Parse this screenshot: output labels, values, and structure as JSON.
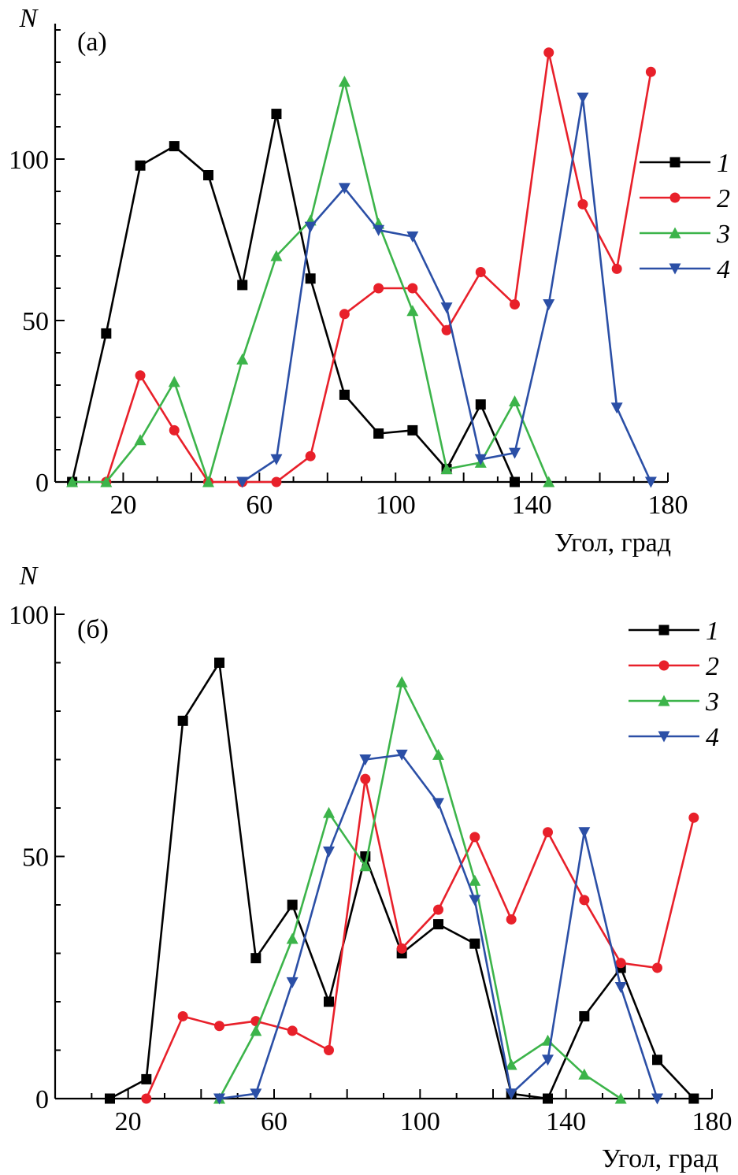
{
  "chart_data": [
    {
      "type": "line",
      "panel_label": "(а)",
      "xlabel": "Угол, град",
      "ylabel": "N",
      "xlim": [
        0,
        180
      ],
      "ylim": [
        0,
        140
      ],
      "xticks": [
        20,
        60,
        100,
        140,
        180
      ],
      "yticks": [
        0,
        50,
        100
      ],
      "legend_position": "right",
      "series": [
        {
          "name": "1",
          "color": "#000000",
          "marker": "square",
          "x": [
            5,
            15,
            25,
            35,
            45,
            55,
            65,
            75,
            85,
            95,
            105,
            115,
            125,
            135
          ],
          "y": [
            0,
            46,
            98,
            104,
            95,
            61,
            114,
            63,
            27,
            15,
            16,
            4,
            24,
            0
          ]
        },
        {
          "name": "2",
          "color": "#e8202a",
          "marker": "circle",
          "x": [
            15,
            25,
            35,
            45,
            55,
            65,
            75,
            85,
            95,
            105,
            115,
            125,
            135,
            145,
            155,
            165,
            175
          ],
          "y": [
            0,
            33,
            16,
            0,
            0,
            0,
            8,
            52,
            60,
            60,
            47,
            65,
            55,
            133,
            86,
            66,
            127
          ]
        },
        {
          "name": "3",
          "color": "#3cb44a",
          "marker": "triangle-up",
          "x": [
            5,
            15,
            25,
            35,
            45,
            55,
            65,
            75,
            85,
            95,
            105,
            115,
            125,
            135,
            145
          ],
          "y": [
            0,
            0,
            13,
            31,
            0,
            38,
            70,
            81,
            124,
            80,
            53,
            4,
            6,
            25,
            0
          ]
        },
        {
          "name": "4",
          "color": "#2b4fa6",
          "marker": "triangle-down",
          "x": [
            55,
            65,
            75,
            85,
            95,
            105,
            115,
            125,
            135,
            145,
            155,
            165,
            175
          ],
          "y": [
            0,
            7,
            79,
            91,
            78,
            76,
            54,
            7,
            9,
            55,
            119,
            23,
            0
          ]
        }
      ]
    },
    {
      "type": "line",
      "panel_label": "(б)",
      "xlabel": "Угол, град",
      "ylabel": "N",
      "xlim": [
        0,
        180
      ],
      "ylim": [
        0,
        100
      ],
      "xticks": [
        20,
        60,
        100,
        140,
        180
      ],
      "yticks": [
        0,
        50,
        100
      ],
      "legend_position": "top-right",
      "series": [
        {
          "name": "1",
          "color": "#000000",
          "marker": "square",
          "x": [
            15,
            25,
            35,
            45,
            55,
            65,
            75,
            85,
            95,
            105,
            115,
            125,
            135,
            145,
            155,
            165,
            175
          ],
          "y": [
            0,
            4,
            78,
            90,
            29,
            40,
            20,
            50,
            30,
            36,
            32,
            1,
            0,
            17,
            27,
            8,
            0
          ]
        },
        {
          "name": "2",
          "color": "#e8202a",
          "marker": "circle",
          "x": [
            25,
            35,
            45,
            55,
            65,
            75,
            85,
            95,
            105,
            115,
            125,
            135,
            145,
            155,
            165,
            175
          ],
          "y": [
            0,
            17,
            15,
            16,
            14,
            10,
            66,
            31,
            39,
            54,
            37,
            55,
            41,
            28,
            27,
            58
          ]
        },
        {
          "name": "3",
          "color": "#3cb44a",
          "marker": "triangle-up",
          "x": [
            45,
            55,
            65,
            75,
            85,
            95,
            105,
            115,
            125,
            135,
            145,
            155
          ],
          "y": [
            0,
            14,
            33,
            59,
            48,
            86,
            71,
            45,
            7,
            12,
            5,
            0
          ]
        },
        {
          "name": "4",
          "color": "#2b4fa6",
          "marker": "triangle-down",
          "x": [
            45,
            55,
            65,
            75,
            85,
            95,
            105,
            115,
            125,
            135,
            145,
            155,
            165
          ],
          "y": [
            0,
            1,
            24,
            51,
            70,
            71,
            61,
            41,
            1,
            8,
            55,
            23,
            0
          ]
        }
      ]
    }
  ]
}
